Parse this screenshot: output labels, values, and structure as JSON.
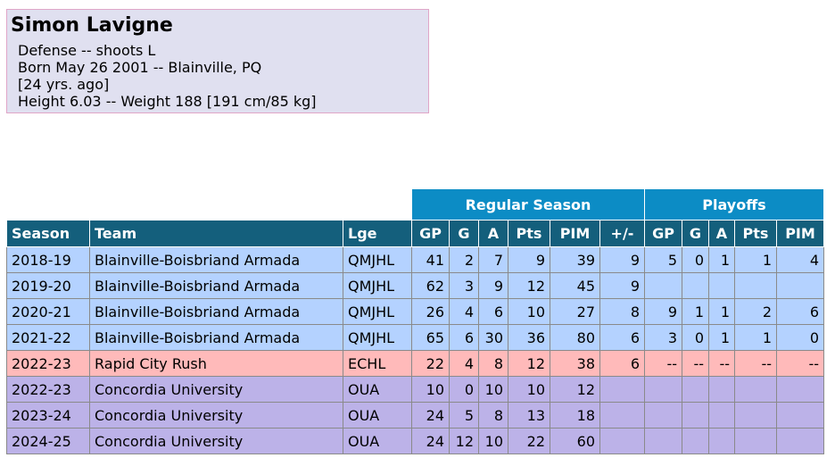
{
  "player": {
    "name": "Simon Lavigne",
    "position_line": "Defense -- shoots L",
    "born_line": "Born May 26 2001 -- Blainville, PQ",
    "age_line": "[24 yrs. ago]",
    "size_line": "Height 6.03 -- Weight 188 [191 cm/85 kg]"
  },
  "table": {
    "group_headers": {
      "regular": "Regular Season",
      "playoffs": "Playoffs"
    },
    "columns": {
      "season": "Season",
      "team": "Team",
      "league": "Lge",
      "gp": "GP",
      "g": "G",
      "a": "A",
      "pts": "Pts",
      "pim": "PIM",
      "pm": "+/-",
      "p_gp": "GP",
      "p_g": "G",
      "p_a": "A",
      "p_pts": "Pts",
      "p_pim": "PIM"
    },
    "rows": [
      {
        "season": "2018-19",
        "team": "Blainville-Boisbriand Armada",
        "league": "QMJHL",
        "gp": "41",
        "g": "2",
        "a": "7",
        "pts": "9",
        "pim": "39",
        "pm": "9",
        "p_gp": "5",
        "p_g": "0",
        "p_a": "1",
        "p_pts": "1",
        "p_pim": "4"
      },
      {
        "season": "2019-20",
        "team": "Blainville-Boisbriand Armada",
        "league": "QMJHL",
        "gp": "62",
        "g": "3",
        "a": "9",
        "pts": "12",
        "pim": "45",
        "pm": "9",
        "p_gp": "",
        "p_g": "",
        "p_a": "",
        "p_pts": "",
        "p_pim": ""
      },
      {
        "season": "2020-21",
        "team": "Blainville-Boisbriand Armada",
        "league": "QMJHL",
        "gp": "26",
        "g": "4",
        "a": "6",
        "pts": "10",
        "pim": "27",
        "pm": "8",
        "p_gp": "9",
        "p_g": "1",
        "p_a": "1",
        "p_pts": "2",
        "p_pim": "6"
      },
      {
        "season": "2021-22",
        "team": "Blainville-Boisbriand Armada",
        "league": "QMJHL",
        "gp": "65",
        "g": "6",
        "a": "30",
        "pts": "36",
        "pim": "80",
        "pm": "6",
        "p_gp": "3",
        "p_g": "0",
        "p_a": "1",
        "p_pts": "1",
        "p_pim": "0"
      },
      {
        "season": "2022-23",
        "team": "Rapid City Rush",
        "league": "ECHL",
        "gp": "22",
        "g": "4",
        "a": "8",
        "pts": "12",
        "pim": "38",
        "pm": "6",
        "p_gp": "--",
        "p_g": "--",
        "p_a": "--",
        "p_pts": "--",
        "p_pim": "--"
      },
      {
        "season": "2022-23",
        "team": "Concordia University",
        "league": "OUA",
        "gp": "10",
        "g": "0",
        "a": "10",
        "pts": "10",
        "pim": "12",
        "pm": "",
        "p_gp": "",
        "p_g": "",
        "p_a": "",
        "p_pts": "",
        "p_pim": ""
      },
      {
        "season": "2023-24",
        "team": "Concordia University",
        "league": "OUA",
        "gp": "24",
        "g": "5",
        "a": "8",
        "pts": "13",
        "pim": "18",
        "pm": "",
        "p_gp": "",
        "p_g": "",
        "p_a": "",
        "p_pts": "",
        "p_pim": ""
      },
      {
        "season": "2024-25",
        "team": "Concordia University",
        "league": "OUA",
        "gp": "24",
        "g": "12",
        "a": "10",
        "pts": "22",
        "pim": "60",
        "pm": "",
        "p_gp": "",
        "p_g": "",
        "p_a": "",
        "p_pts": "",
        "p_pim": ""
      }
    ]
  },
  "colors": {
    "header_dark": "#145f7c",
    "header_group": "#0c8cc5",
    "row_qmjhl": "#b4d2ff",
    "row_echl": "#ffbaba",
    "row_oua": "#bcb2e8",
    "infobox_bg": "#e0e0f0"
  }
}
